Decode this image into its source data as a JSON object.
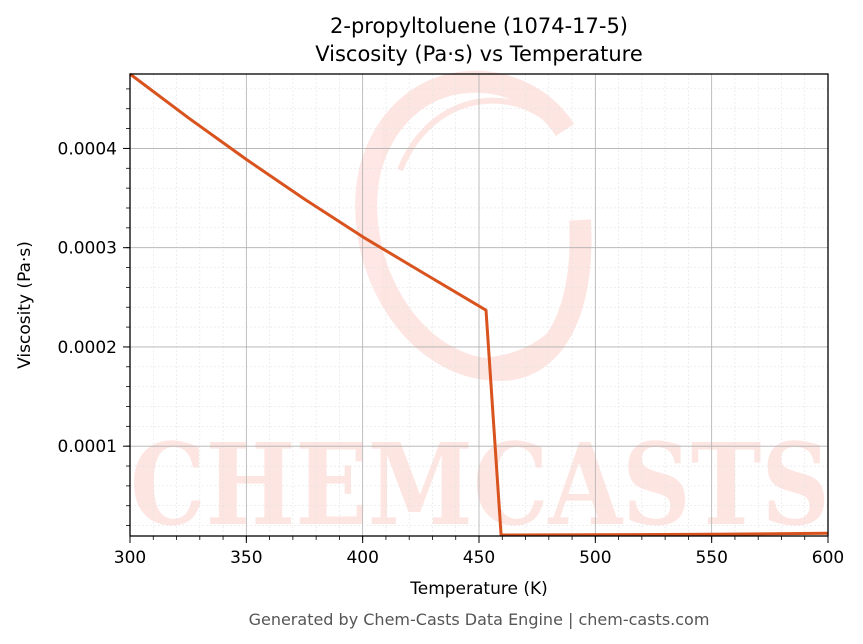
{
  "chart_data": {
    "type": "line",
    "title": "2-propyltoluene (1074-17-5)",
    "subtitle": "Viscosity (Pa·s) vs Temperature",
    "xlabel": "Temperature (K)",
    "ylabel": "Viscosity (Pa·s)",
    "xlim": [
      300,
      600
    ],
    "ylim": [
      9.5e-06,
      0.000475
    ],
    "xticks": [
      300,
      350,
      400,
      450,
      500,
      550,
      600
    ],
    "xtick_labels": [
      "300",
      "350",
      "400",
      "450",
      "500",
      "550",
      "600"
    ],
    "yticks": [
      0.0001,
      0.0002,
      0.0003,
      0.0004
    ],
    "ytick_labels": [
      "0.0001",
      "0.0002",
      "0.0003",
      "0.0004"
    ],
    "grid": true,
    "series": [
      {
        "color": "#d9531e",
        "x": [
          300,
          325,
          350,
          375,
          400,
          425,
          453,
          459.5,
          500,
          550,
          600
        ],
        "y": [
          0.000475,
          0.000431,
          0.000389,
          0.000349,
          0.000311,
          0.000276,
          0.000237,
          1.05e-05,
          1.07e-05,
          1.12e-05,
          1.23e-05
        ]
      }
    ],
    "watermark": "CHEMCASTS"
  },
  "footer": "Generated by Chem-Casts Data Engine | chem-casts.com"
}
